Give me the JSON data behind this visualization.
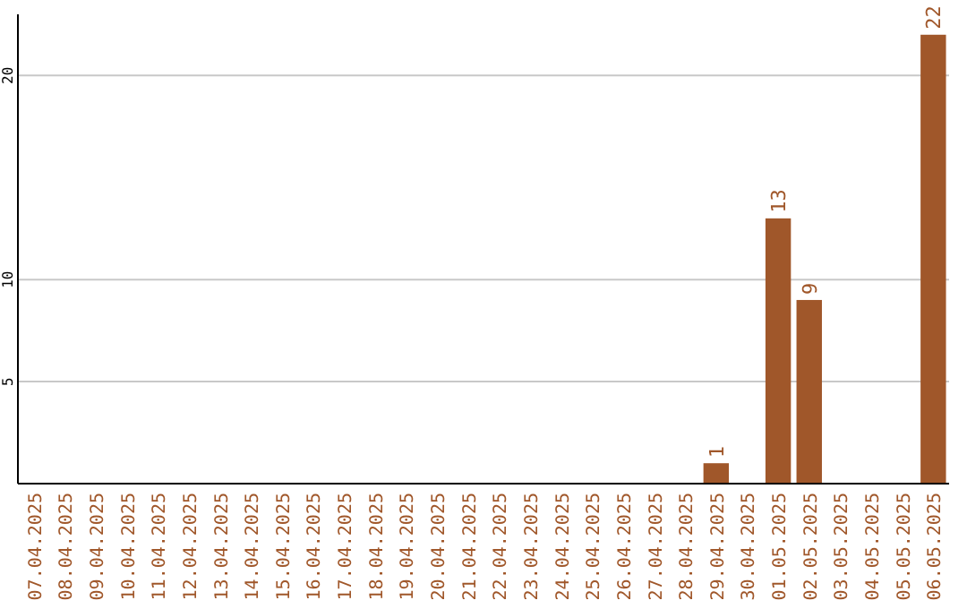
{
  "chart_data": {
    "type": "bar",
    "categories": [
      "07.04.2025",
      "08.04.2025",
      "09.04.2025",
      "10.04.2025",
      "11.04.2025",
      "12.04.2025",
      "13.04.2025",
      "14.04.2025",
      "15.04.2025",
      "16.04.2025",
      "17.04.2025",
      "18.04.2025",
      "19.04.2025",
      "20.04.2025",
      "21.04.2025",
      "22.04.2025",
      "23.04.2025",
      "24.04.2025",
      "25.04.2025",
      "26.04.2025",
      "27.04.2025",
      "28.04.2025",
      "29.04.2025",
      "30.04.2025",
      "01.05.2025",
      "02.05.2025",
      "03.05.2025",
      "04.05.2025",
      "05.05.2025",
      "06.05.2025"
    ],
    "values": [
      0,
      0,
      0,
      0,
      0,
      0,
      0,
      0,
      0,
      0,
      0,
      0,
      0,
      0,
      0,
      0,
      0,
      0,
      0,
      0,
      0,
      0,
      1,
      0,
      13,
      9,
      0,
      0,
      0,
      22
    ],
    "value_labels": [
      null,
      null,
      null,
      null,
      null,
      null,
      null,
      null,
      null,
      null,
      null,
      null,
      null,
      null,
      null,
      null,
      null,
      null,
      null,
      null,
      null,
      null,
      "1",
      null,
      "13",
      "9",
      null,
      null,
      null,
      "22"
    ],
    "color": "#a0572a",
    "ylim": [
      0,
      23
    ],
    "yticks": [
      5,
      10,
      20
    ],
    "grid": "y"
  }
}
